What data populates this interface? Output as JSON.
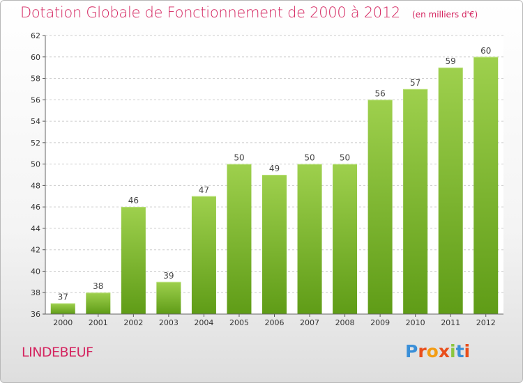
{
  "title": "Dotation Globale de Fonctionnement de 2000 à 2012",
  "subtitle": "(en milliers d'€)",
  "commune": "LINDEBEUF",
  "logo_text": "Proxiti",
  "colors": {
    "title": "#d4245f",
    "bar_top": "#9ed04d",
    "bar_bottom": "#5f9c17",
    "grid": "#cccccc"
  },
  "chart_data": {
    "type": "bar",
    "categories": [
      "2000",
      "2001",
      "2002",
      "2003",
      "2004",
      "2005",
      "2006",
      "2007",
      "2008",
      "2009",
      "2010",
      "2011",
      "2012"
    ],
    "values": [
      37,
      38,
      46,
      39,
      47,
      50,
      49,
      50,
      50,
      56,
      57,
      59,
      60
    ],
    "ylim": [
      36,
      62
    ],
    "yticks": [
      36,
      38,
      40,
      42,
      44,
      46,
      48,
      50,
      52,
      54,
      56,
      58,
      60,
      62
    ],
    "grid": "horizontal"
  }
}
